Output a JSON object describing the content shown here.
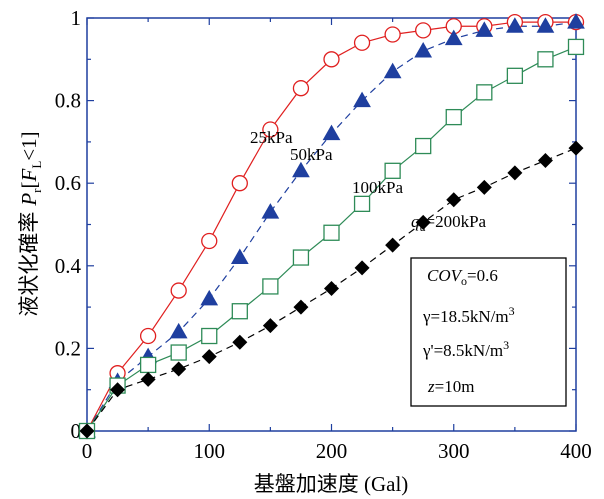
{
  "chart_data": {
    "type": "line",
    "title": "",
    "xlabel": "基盤加速度 (Gal)",
    "ylabel": {
      "prefix": "液状化確率",
      "P": "P",
      "P_sub": "r",
      "open": "[",
      "F": "F",
      "F_sub": "L",
      "close": "<1]"
    },
    "xlim": [
      0,
      400
    ],
    "ylim": [
      0,
      1
    ],
    "xticks": [
      "0",
      "100",
      "200",
      "300",
      "400"
    ],
    "yticks": [
      "0",
      "0.2",
      "0.4",
      "0.6",
      "0.8",
      "1"
    ],
    "grid": false,
    "series": [
      {
        "name": "25kPa",
        "color": "#e02020",
        "marker": "circle-open",
        "line": "solid",
        "x": [
          0,
          25,
          50,
          75,
          100,
          125,
          150,
          175,
          200,
          225,
          250,
          275,
          300,
          325,
          350,
          375,
          400
        ],
        "y": [
          0.0,
          0.14,
          0.23,
          0.34,
          0.46,
          0.6,
          0.73,
          0.83,
          0.9,
          0.94,
          0.96,
          0.97,
          0.98,
          0.98,
          0.99,
          0.99,
          0.99
        ]
      },
      {
        "name": "50kPa",
        "color": "#1f3f9f",
        "marker": "triangle-filled",
        "line": "dashed",
        "x": [
          0,
          25,
          50,
          75,
          100,
          125,
          150,
          175,
          200,
          225,
          250,
          275,
          300,
          325,
          350,
          375,
          400
        ],
        "y": [
          0.0,
          0.12,
          0.18,
          0.24,
          0.32,
          0.42,
          0.53,
          0.63,
          0.72,
          0.8,
          0.87,
          0.92,
          0.95,
          0.97,
          0.98,
          0.98,
          0.99
        ]
      },
      {
        "name": "100kPa",
        "color": "#2e8b57",
        "marker": "square-open",
        "line": "solid",
        "x": [
          0,
          25,
          50,
          75,
          100,
          125,
          150,
          175,
          200,
          225,
          250,
          275,
          300,
          325,
          350,
          375,
          400
        ],
        "y": [
          0.0,
          0.11,
          0.16,
          0.19,
          0.23,
          0.29,
          0.35,
          0.42,
          0.48,
          0.55,
          0.63,
          0.69,
          0.76,
          0.82,
          0.86,
          0.9,
          0.93
        ]
      },
      {
        "name": "200kPa",
        "color": "#000000",
        "marker": "diamond-filled",
        "line": "dashed",
        "x": [
          0,
          25,
          50,
          75,
          100,
          125,
          150,
          175,
          200,
          225,
          250,
          275,
          300,
          325,
          350,
          375,
          400
        ],
        "y": [
          0.0,
          0.1,
          0.125,
          0.15,
          0.18,
          0.215,
          0.255,
          0.3,
          0.345,
          0.395,
          0.45,
          0.505,
          0.56,
          0.59,
          0.625,
          0.655,
          0.685
        ]
      }
    ],
    "annotations": {
      "s25": "25kPa",
      "s50": "50kPa",
      "s100": "100kPa",
      "s200_q": "q",
      "s200_sub": "u",
      "s200_rest": "=200kPa"
    },
    "info_box": {
      "cov_italic": "COV",
      "cov_sub": "o",
      "cov_rest": "=0.6",
      "gamma": "γ=18.5kN/m",
      "gamma_sup": "3",
      "gamma_prime": "γ'=8.5kN/m",
      "gamma_prime_sup": "3",
      "z_italic": "z",
      "z_rest": "=10m"
    }
  }
}
